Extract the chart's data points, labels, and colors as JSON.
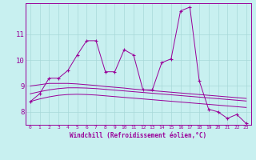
{
  "xlabel": "Windchill (Refroidissement éolien,°C)",
  "x": [
    0,
    1,
    2,
    3,
    4,
    5,
    6,
    7,
    8,
    9,
    10,
    11,
    12,
    13,
    14,
    15,
    16,
    17,
    18,
    19,
    20,
    21,
    22,
    23
  ],
  "y_main": [
    8.4,
    8.7,
    9.3,
    9.3,
    9.6,
    10.2,
    10.75,
    10.75,
    9.55,
    9.55,
    10.4,
    10.2,
    8.85,
    8.85,
    9.9,
    10.05,
    11.9,
    12.05,
    9.2,
    8.1,
    8.0,
    7.75,
    7.9,
    7.55
  ],
  "y_trend1": [
    9.0,
    9.05,
    9.1,
    9.1,
    9.1,
    9.08,
    9.05,
    9.02,
    8.98,
    8.95,
    8.92,
    8.88,
    8.85,
    8.82,
    8.79,
    8.76,
    8.73,
    8.7,
    8.67,
    8.64,
    8.61,
    8.58,
    8.55,
    8.52
  ],
  "y_trend2": [
    8.7,
    8.78,
    8.85,
    8.9,
    8.93,
    8.93,
    8.92,
    8.9,
    8.87,
    8.84,
    8.81,
    8.78,
    8.75,
    8.72,
    8.69,
    8.66,
    8.63,
    8.6,
    8.57,
    8.54,
    8.51,
    8.48,
    8.45,
    8.42
  ],
  "y_trend3": [
    8.4,
    8.5,
    8.58,
    8.64,
    8.67,
    8.68,
    8.67,
    8.65,
    8.62,
    8.59,
    8.56,
    8.53,
    8.5,
    8.47,
    8.44,
    8.41,
    8.38,
    8.35,
    8.32,
    8.29,
    8.26,
    8.23,
    8.2,
    8.17
  ],
  "line_color": "#990099",
  "bg_color": "#c8f0f0",
  "grid_color": "#a8d8d8",
  "ylim": [
    7.5,
    12.2
  ],
  "yticks": [
    8,
    9,
    10,
    11
  ],
  "xticks": [
    0,
    1,
    2,
    3,
    4,
    5,
    6,
    7,
    8,
    9,
    10,
    11,
    12,
    13,
    14,
    15,
    16,
    17,
    18,
    19,
    20,
    21,
    22,
    23
  ]
}
